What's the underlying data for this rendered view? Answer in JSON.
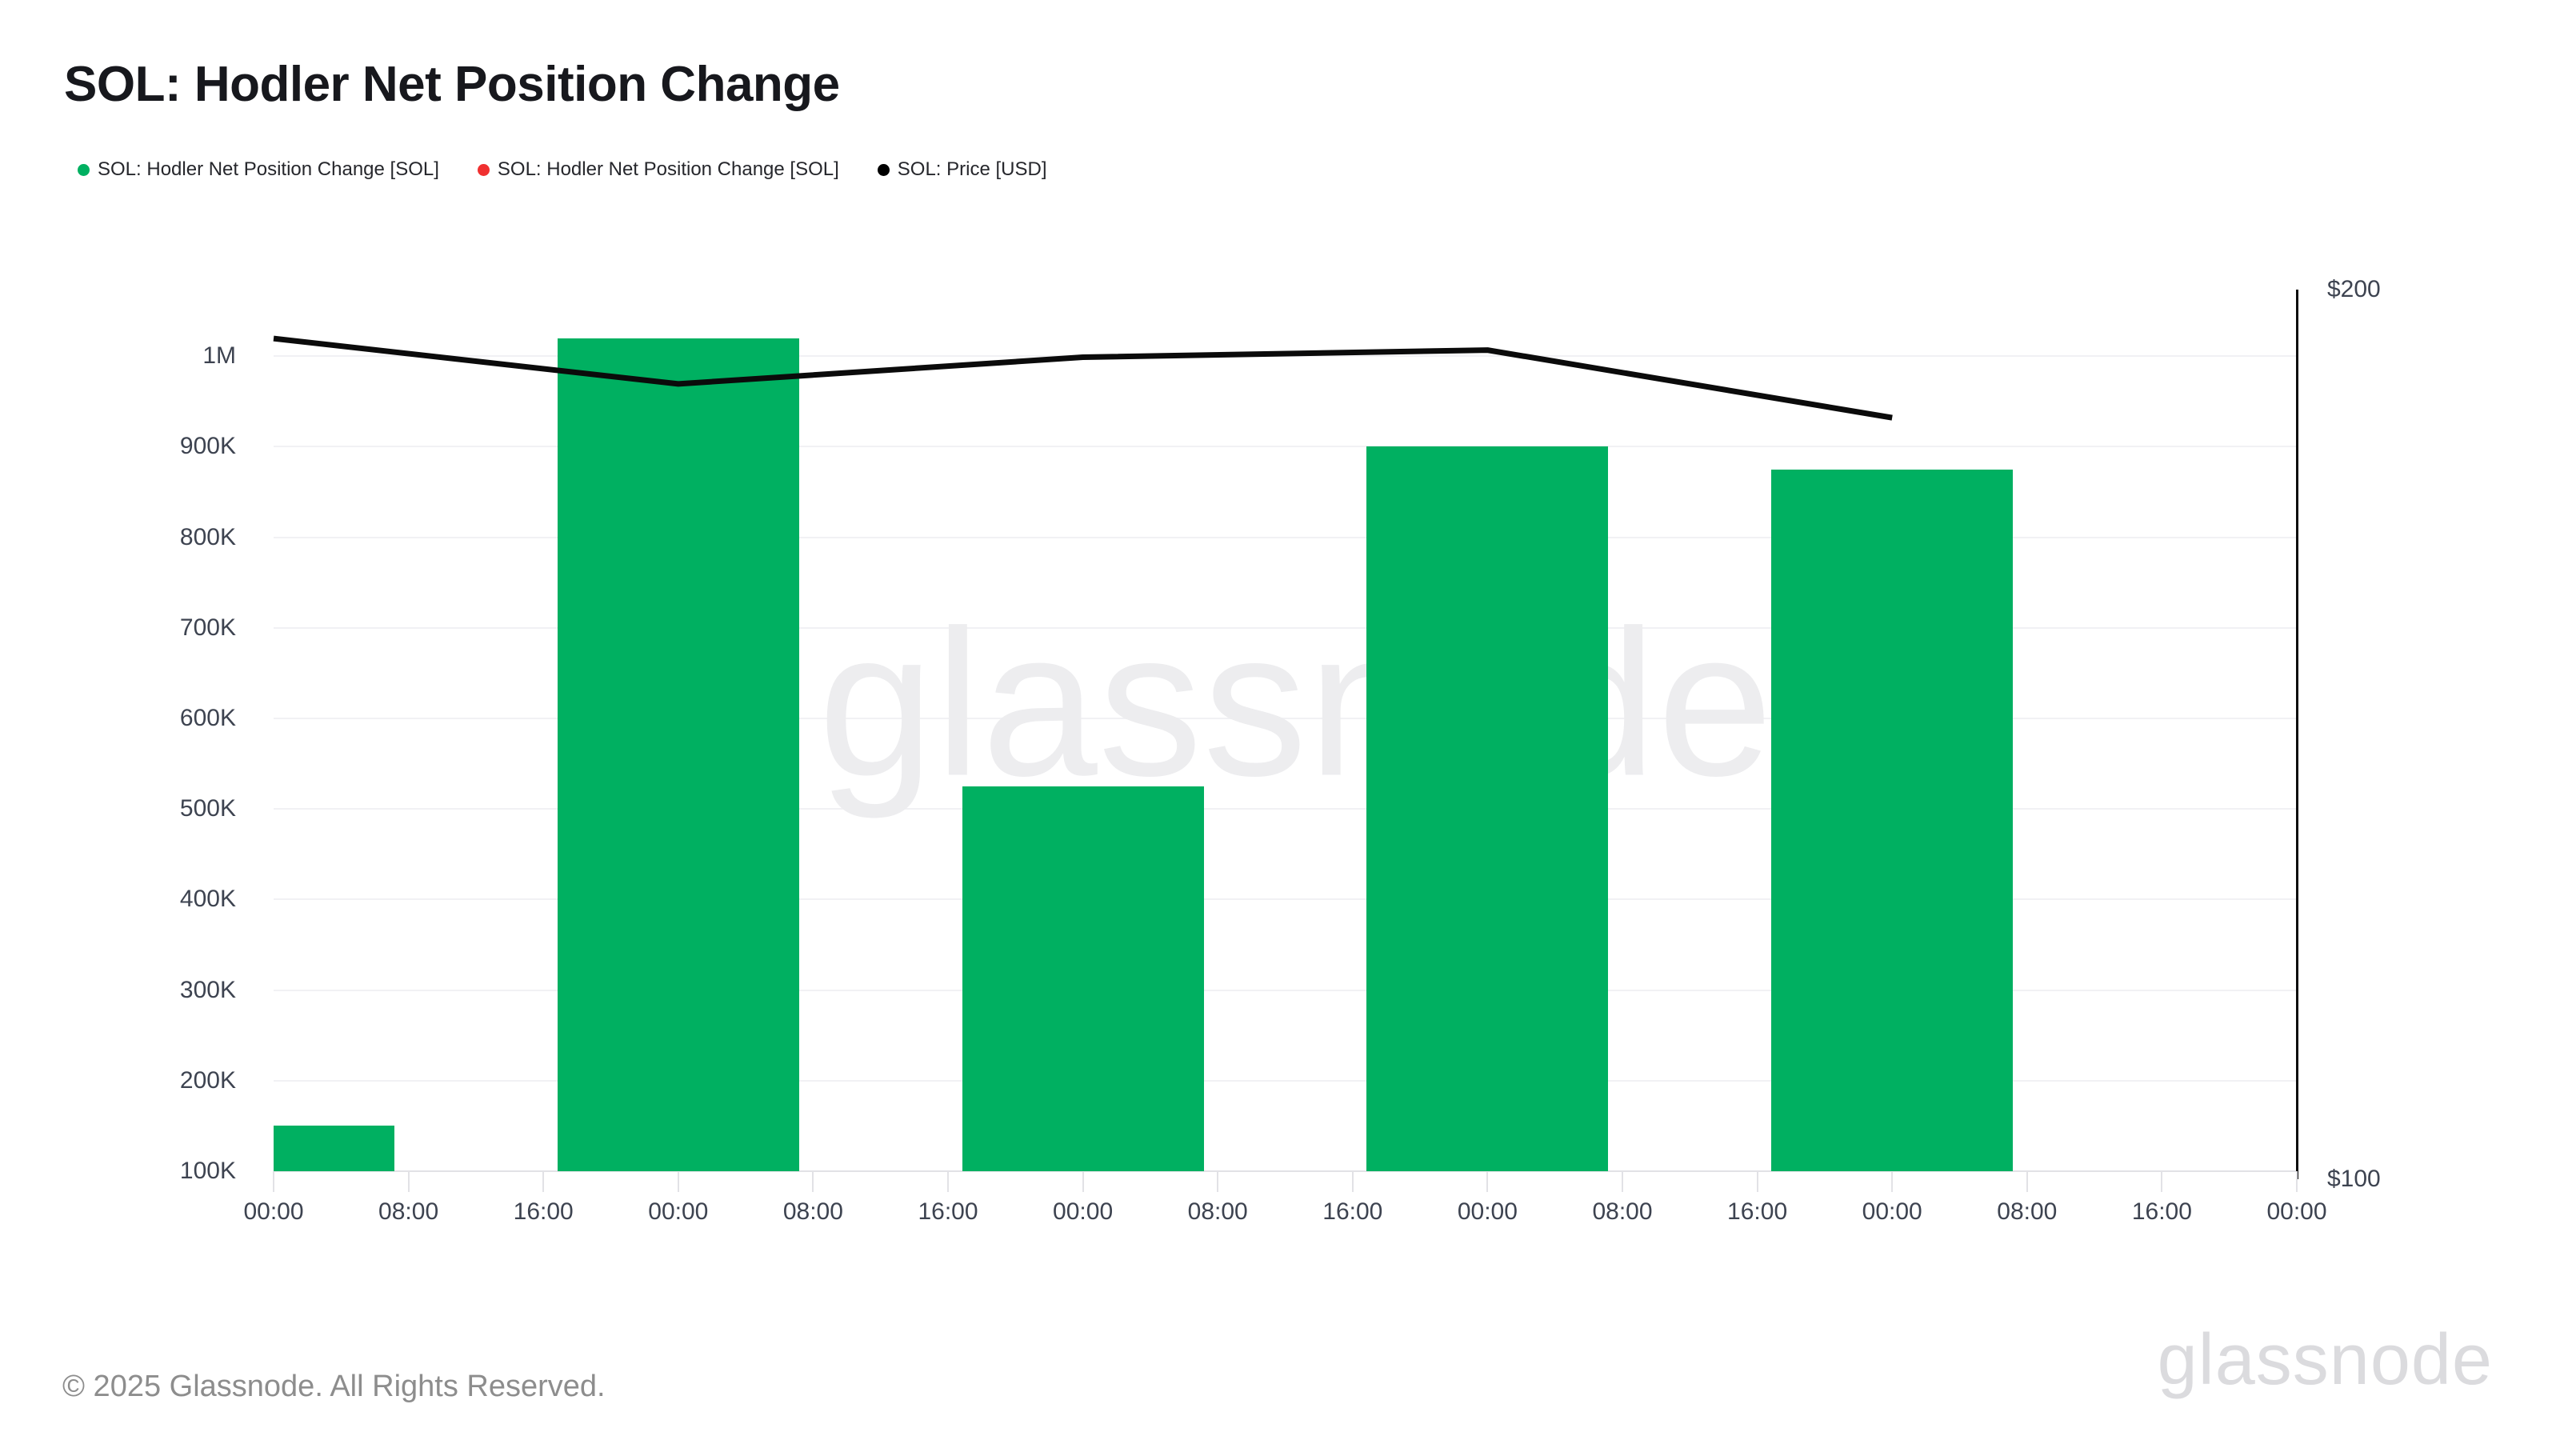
{
  "header": {
    "title": "SOL: Hodler Net Position Change"
  },
  "legend": [
    {
      "label": "SOL: Hodler Net Position Change [SOL]",
      "color": "#00B061"
    },
    {
      "label": "SOL: Hodler Net Position Change [SOL]",
      "color": "#F03030"
    },
    {
      "label": "SOL: Price [USD]",
      "color": "#000000"
    }
  ],
  "watermark": "glassnode",
  "footer": {
    "copyright": "© 2025 Glassnode. All Rights Reserved.",
    "logo": "glassnode"
  },
  "chart_data": {
    "type": "bar+line",
    "title": "SOL: Hodler Net Position Change",
    "x_tick_labels": [
      "00:00",
      "08:00",
      "16:00",
      "00:00",
      "08:00",
      "16:00",
      "00:00",
      "08:00",
      "16:00",
      "00:00",
      "08:00",
      "16:00",
      "00:00",
      "08:00",
      "16:00",
      "00:00"
    ],
    "x_tick_interval_hours": 8,
    "ticks_per_day": 3,
    "bar_series": {
      "name": "SOL: Hodler Net Position Change [SOL]",
      "color": "#00B061",
      "unit": "SOL",
      "x_positions": "daily, centered on each 00:00 tick",
      "values": [
        150000,
        1020000,
        525000,
        900000,
        875000
      ]
    },
    "line_series": {
      "name": "SOL: Price [USD]",
      "color": "#0b0b0b",
      "unit": "USD",
      "x_positions": "daily, at each 00:00 tick",
      "values": [
        194.5,
        189.4,
        192.4,
        193.2,
        185.6
      ]
    },
    "left_axis": {
      "tick_labels": [
        "100K",
        "200K",
        "300K",
        "400K",
        "500K",
        "600K",
        "700K",
        "800K",
        "900K",
        "1M"
      ],
      "tick_values": [
        100000,
        200000,
        300000,
        400000,
        500000,
        600000,
        700000,
        800000,
        900000,
        1000000
      ],
      "min_visible": 100000,
      "grid": true
    },
    "right_axis": {
      "tick_labels": [
        "$200",
        "$100"
      ],
      "tick_values": [
        200,
        100
      ],
      "min": 100,
      "max": 200
    },
    "legend_position": "top-left"
  }
}
